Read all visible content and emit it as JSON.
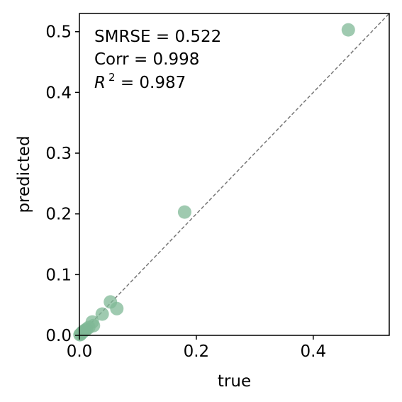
{
  "chart_data": {
    "type": "scatter",
    "xlabel": "true",
    "ylabel": "predicted",
    "xlim": [
      0.0,
      0.53
    ],
    "ylim": [
      0.0,
      0.53
    ],
    "xticks": [
      "0.0",
      "0.2",
      "0.4"
    ],
    "xtick_values": [
      0.0,
      0.2,
      0.4
    ],
    "yticks": [
      "0.0",
      "0.1",
      "0.2",
      "0.3",
      "0.4",
      "0.5"
    ],
    "ytick_values": [
      0.0,
      0.1,
      0.2,
      0.3,
      0.4,
      0.5
    ],
    "reference_line": "y = x (dashed)",
    "grid": false,
    "marker_color": "#7fb895",
    "marker_edge_color": "#4f9a6d",
    "reference_line_color": "#777777",
    "annotations": {
      "smrse": "SMRSE = 0.522",
      "corr": "Corr = 0.998",
      "r2_symbol": "R",
      "r2_power": "2",
      "r2_value": " = 0.987"
    },
    "points": [
      {
        "x": 0.46,
        "y": 0.503
      },
      {
        "x": 0.18,
        "y": 0.203
      },
      {
        "x": 0.053,
        "y": 0.055
      },
      {
        "x": 0.064,
        "y": 0.044
      },
      {
        "x": 0.039,
        "y": 0.035
      },
      {
        "x": 0.022,
        "y": 0.022
      },
      {
        "x": 0.024,
        "y": 0.016
      },
      {
        "x": 0.016,
        "y": 0.013
      },
      {
        "x": 0.012,
        "y": 0.01
      },
      {
        "x": 0.009,
        "y": 0.008
      },
      {
        "x": 0.006,
        "y": 0.006
      },
      {
        "x": 0.004,
        "y": 0.004
      },
      {
        "x": 0.002,
        "y": 0.002
      },
      {
        "x": 0.001,
        "y": 0.001
      }
    ]
  }
}
